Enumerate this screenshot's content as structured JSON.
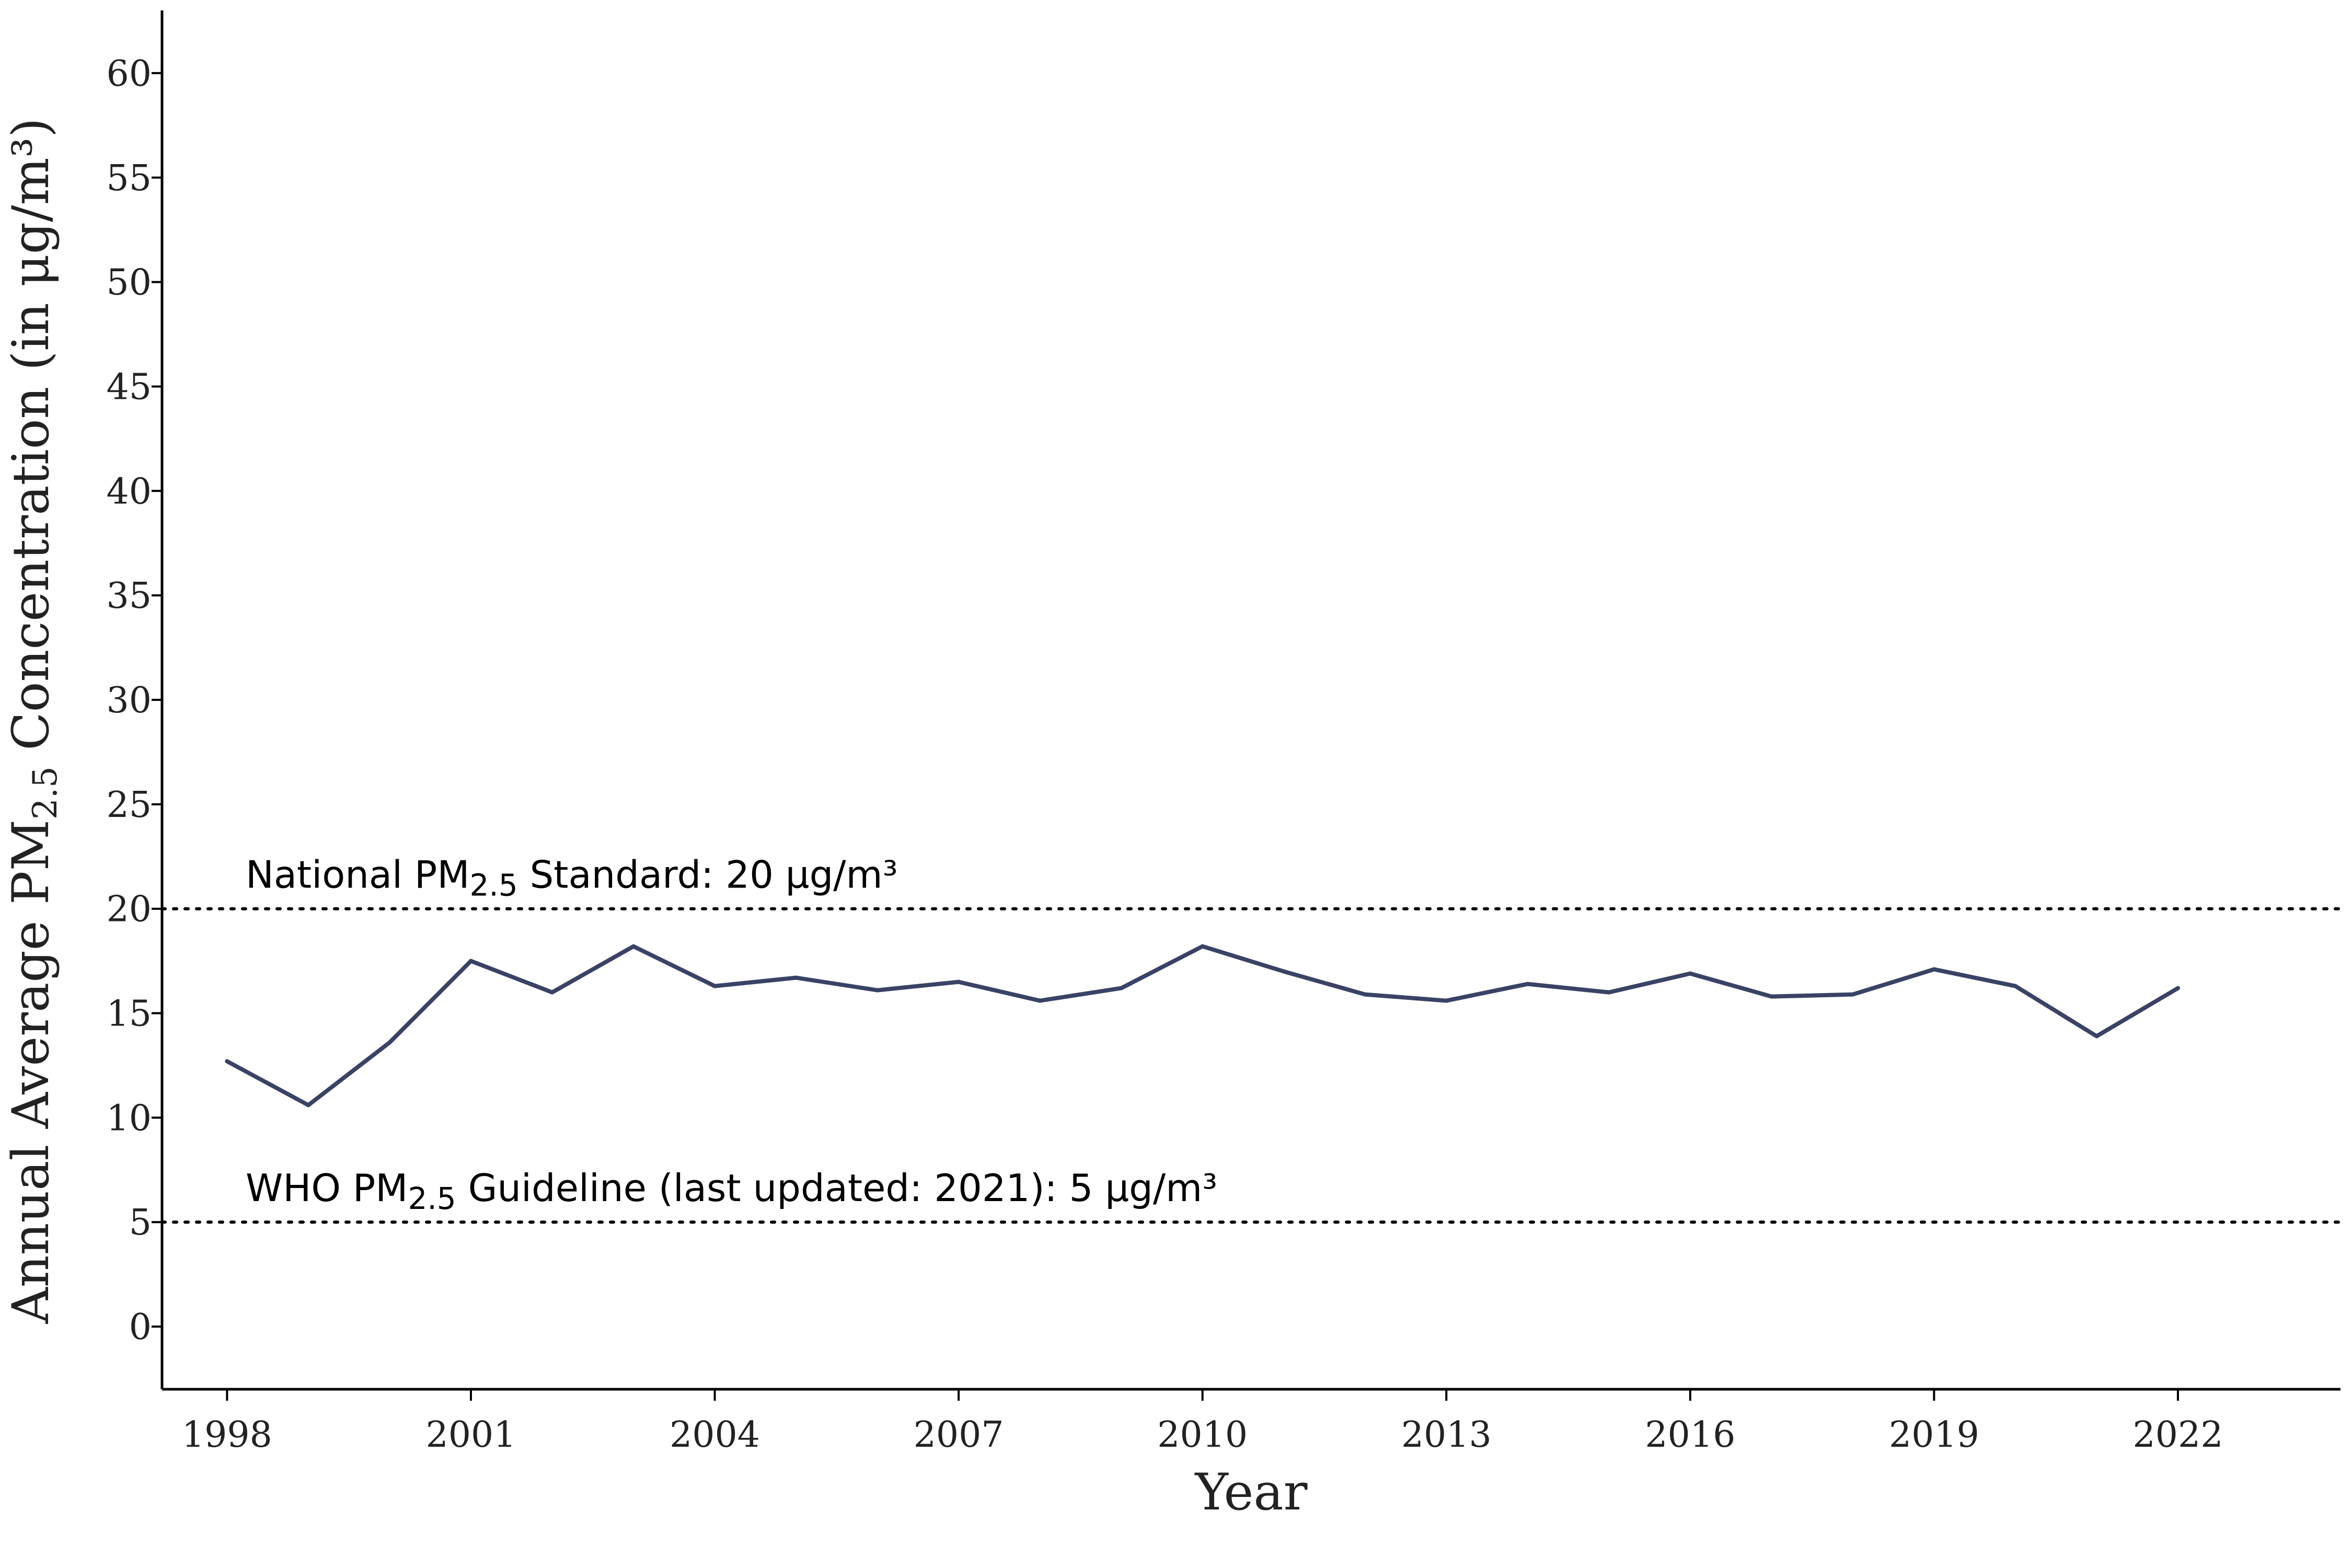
{
  "chart_data": {
    "type": "line",
    "xlabel": "Year",
    "ylabel": {
      "before": "Annual Average PM",
      "sub": "2.5",
      "after": " Concentration (in μg/m³)"
    },
    "xlim": [
      1997.2,
      2024.0
    ],
    "ylim": [
      -3,
      63
    ],
    "x_ticks": [
      "1998",
      "2001",
      "2004",
      "2007",
      "2010",
      "2013",
      "2016",
      "2019",
      "2022"
    ],
    "y_ticks": [
      "0",
      "5",
      "10",
      "15",
      "20",
      "25",
      "30",
      "35",
      "40",
      "45",
      "50",
      "55",
      "60"
    ],
    "grid": false,
    "series": [
      {
        "color": "#3a4265",
        "x": [
          1998,
          1999,
          2000,
          2001,
          2002,
          2003,
          2004,
          2005,
          2006,
          2007,
          2008,
          2009,
          2010,
          2011,
          2012,
          2013,
          2014,
          2015,
          2016,
          2017,
          2018,
          2019,
          2020,
          2021,
          2022
        ],
        "values": [
          12.7,
          10.6,
          13.6,
          17.5,
          16.0,
          18.2,
          16.3,
          16.7,
          16.1,
          16.5,
          15.6,
          16.2,
          18.2,
          17.0,
          15.9,
          15.6,
          16.4,
          16.0,
          16.9,
          15.8,
          15.9,
          17.1,
          16.3,
          13.9,
          16.2
        ]
      }
    ],
    "reference_lines": [
      {
        "y": 20,
        "style": "dotted",
        "label": {
          "before": "National PM",
          "sub": "2.5",
          "after": " Standard: 20 μg/m³"
        }
      },
      {
        "y": 5,
        "style": "dotted",
        "label": {
          "before": "WHO PM",
          "sub": "2.5",
          "after": " Guideline (last updated: 2021): 5 μg/m³"
        }
      }
    ]
  }
}
